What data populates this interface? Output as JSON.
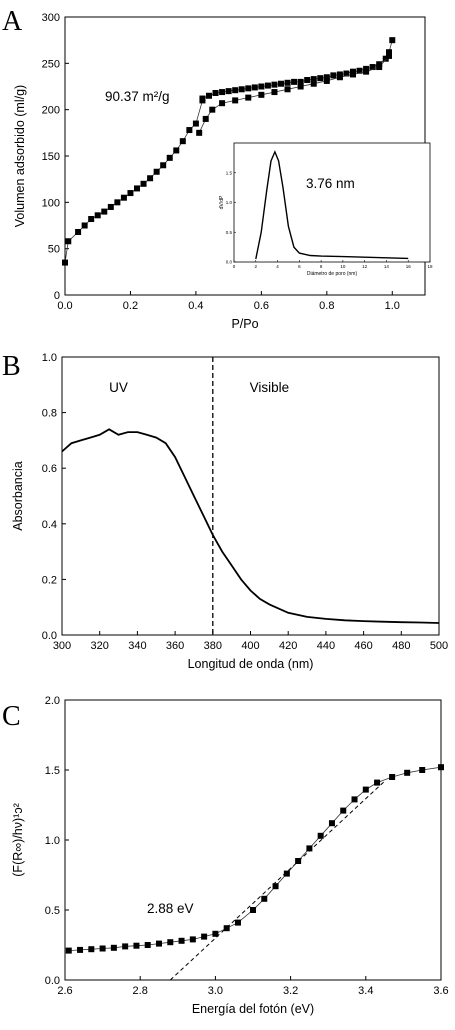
{
  "chart_data": [
    {
      "panel": "A",
      "type": "scatter",
      "xlabel": "P/Po",
      "ylabel": "Volumen adsorbido (ml/g)",
      "xlim": [
        0,
        1.1
      ],
      "ylim": [
        0,
        300
      ],
      "xticks": [
        "0.0",
        "0.2",
        "0.4",
        "0.6",
        "0.8",
        "1.0"
      ],
      "yticks": [
        "0",
        "50",
        "100",
        "150",
        "200",
        "250",
        "300"
      ],
      "annotation": "90.37 m²/g",
      "series": [
        {
          "marker": "square",
          "x": [
            0.0,
            0.01,
            0.04,
            0.06,
            0.08,
            0.1,
            0.12,
            0.14,
            0.16,
            0.18,
            0.2,
            0.22,
            0.24,
            0.26,
            0.28,
            0.3,
            0.32,
            0.34,
            0.36,
            0.38,
            0.4,
            0.42
          ],
          "y": [
            35,
            58,
            68,
            75,
            82,
            86,
            90,
            95,
            100,
            105,
            110,
            115,
            120,
            126,
            133,
            140,
            148,
            156,
            166,
            178,
            185,
            210
          ]
        },
        {
          "marker": "square",
          "x": [
            0.42,
            0.44,
            0.46,
            0.48,
            0.5,
            0.52,
            0.54,
            0.56,
            0.58,
            0.6,
            0.62,
            0.64,
            0.66,
            0.68,
            0.7,
            0.72,
            0.74,
            0.76,
            0.78,
            0.8,
            0.82,
            0.84,
            0.86,
            0.88,
            0.9,
            0.92,
            0.94,
            0.96,
            0.98,
            0.99,
            1.0
          ],
          "y": [
            212,
            215,
            218,
            219,
            220,
            221,
            222,
            223,
            224,
            225,
            226,
            227,
            228,
            229,
            230,
            230,
            232,
            233,
            234,
            235,
            237,
            238,
            239,
            241,
            242,
            244,
            246,
            249,
            255,
            262,
            275
          ]
        },
        {
          "marker": "square",
          "x": [
            0.41,
            0.43,
            0.45,
            0.48,
            0.52,
            0.56,
            0.6,
            0.64,
            0.68,
            0.72,
            0.76,
            0.8,
            0.84,
            0.88,
            0.92,
            0.96,
            0.99
          ],
          "y": [
            175,
            190,
            200,
            207,
            210,
            213,
            216,
            219,
            222,
            225,
            228,
            231,
            235,
            238,
            241,
            246,
            258
          ]
        }
      ],
      "inset": {
        "xlabel": "Diámetro de poro (nm)",
        "ylabel": "dV/dP",
        "annotation": "3.76 nm",
        "xticks": [
          "0",
          "2",
          "4",
          "6",
          "8",
          "10",
          "12",
          "14",
          "16",
          "18"
        ],
        "yticks": [
          "0.0",
          "0.5",
          "1.0",
          "1.5"
        ],
        "xlim": [
          0,
          18
        ],
        "ylim": [
          0,
          2.0
        ],
        "x": [
          2.0,
          2.5,
          3.0,
          3.4,
          3.76,
          4.1,
          4.5,
          5.0,
          5.5,
          6.0,
          7.0,
          8.0,
          10.0,
          12.0,
          14.0,
          16.0
        ],
        "y": [
          0.05,
          0.5,
          1.2,
          1.7,
          1.85,
          1.7,
          1.25,
          0.6,
          0.25,
          0.15,
          0.11,
          0.1,
          0.09,
          0.08,
          0.07,
          0.06
        ]
      }
    },
    {
      "panel": "B",
      "type": "line",
      "xlabel": "Longitud de onda (nm)",
      "ylabel": "Absorbancia",
      "xlim": [
        300,
        500
      ],
      "ylim": [
        0,
        1.0
      ],
      "xticks": [
        "300",
        "320",
        "340",
        "360",
        "380",
        "400",
        "420",
        "440",
        "460",
        "480",
        "500"
      ],
      "yticks": [
        "0.0",
        "0.2",
        "0.4",
        "0.6",
        "0.8",
        "1.0"
      ],
      "vline": 380,
      "region_left": "UV",
      "region_right": "Visible",
      "x": [
        300,
        305,
        310,
        315,
        320,
        325,
        330,
        335,
        340,
        345,
        350,
        355,
        360,
        365,
        370,
        375,
        380,
        385,
        390,
        395,
        400,
        405,
        410,
        420,
        430,
        440,
        450,
        460,
        470,
        480,
        490,
        500
      ],
      "y": [
        0.66,
        0.69,
        0.7,
        0.71,
        0.72,
        0.74,
        0.72,
        0.73,
        0.73,
        0.72,
        0.71,
        0.69,
        0.64,
        0.57,
        0.5,
        0.43,
        0.36,
        0.3,
        0.25,
        0.2,
        0.16,
        0.13,
        0.11,
        0.08,
        0.065,
        0.058,
        0.053,
        0.05,
        0.048,
        0.046,
        0.045,
        0.043
      ]
    },
    {
      "panel": "C",
      "type": "scatter",
      "xlabel": "Energía del fotón (eV)",
      "ylabel": "(F(R∞)/hν)¹ᴐ²",
      "xlim": [
        2.6,
        3.6
      ],
      "ylim": [
        0,
        2.0
      ],
      "xticks": [
        "2.6",
        "2.8",
        "3.0",
        "3.2",
        "3.4",
        "3.6"
      ],
      "yticks": [
        "0.0",
        "0.5",
        "1.0",
        "1.5",
        "2.0"
      ],
      "annotation": "2.88 eV",
      "x": [
        2.61,
        2.64,
        2.67,
        2.7,
        2.73,
        2.76,
        2.79,
        2.82,
        2.85,
        2.88,
        2.91,
        2.94,
        2.97,
        3.0,
        3.03,
        3.06,
        3.1,
        3.13,
        3.16,
        3.19,
        3.22,
        3.25,
        3.28,
        3.31,
        3.34,
        3.37,
        3.4,
        3.43,
        3.47,
        3.51,
        3.55,
        3.6
      ],
      "y": [
        0.21,
        0.215,
        0.22,
        0.225,
        0.23,
        0.24,
        0.245,
        0.25,
        0.26,
        0.27,
        0.28,
        0.29,
        0.31,
        0.33,
        0.37,
        0.41,
        0.5,
        0.58,
        0.67,
        0.76,
        0.85,
        0.94,
        1.03,
        1.12,
        1.21,
        1.29,
        1.36,
        1.41,
        1.45,
        1.48,
        1.5,
        1.52
      ],
      "tangent": {
        "x": [
          2.88,
          3.45
        ],
        "y": [
          0.0,
          1.42
        ]
      }
    }
  ]
}
